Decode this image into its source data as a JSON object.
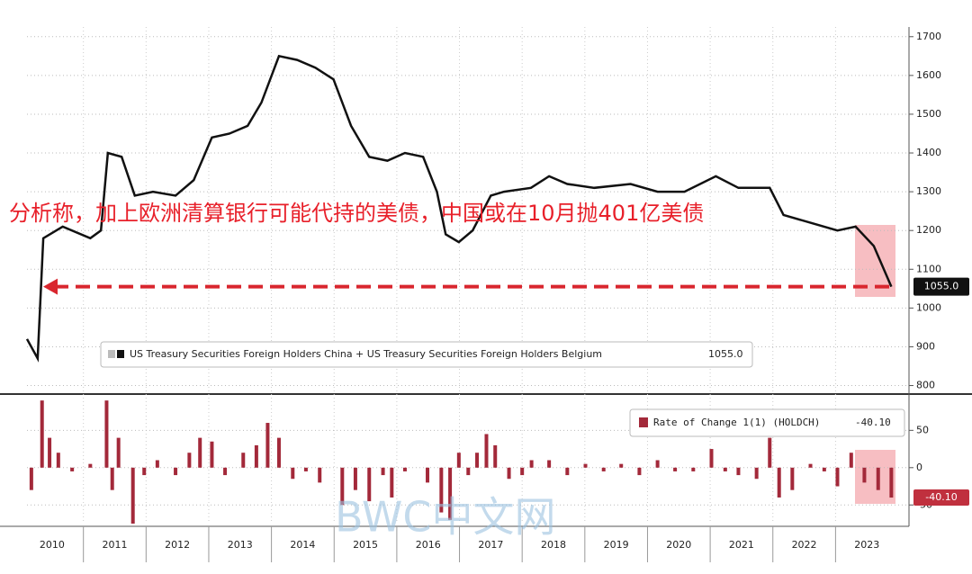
{
  "chart_data": [
    {
      "type": "line",
      "annotation": "分析称，加上欧洲清算银行可能代持的美债，中国或在10月抛401亿美债",
      "watermark": "BWC中文网",
      "xlim": [
        2010.1,
        2024.1
      ],
      "ylim": [
        785,
        1725
      ],
      "yticks": [
        800,
        900,
        1000,
        1100,
        1200,
        1300,
        1400,
        1500,
        1600,
        1700
      ],
      "grid": true,
      "series": [
        {
          "name": "US Treasury Securities Foreign Holders China + US Treasury Securities Foreign Holders Belgium",
          "color": "#111111",
          "last_value_label": "1055.0",
          "x": [
            2010.1,
            2010.27,
            2010.36,
            2010.67,
            2011.11,
            2011.28,
            2011.39,
            2011.61,
            2011.82,
            2012.11,
            2012.47,
            2012.76,
            2013.05,
            2013.33,
            2013.62,
            2013.84,
            2014.12,
            2014.41,
            2014.7,
            2014.99,
            2015.27,
            2015.56,
            2015.85,
            2016.13,
            2016.42,
            2016.64,
            2016.78,
            2016.99,
            2017.21,
            2017.5,
            2017.71,
            2018.14,
            2018.43,
            2018.72,
            2019.15,
            2019.73,
            2020.16,
            2020.59,
            2021.09,
            2021.45,
            2021.95,
            2022.17,
            2022.6,
            2023.03,
            2023.32,
            2023.61,
            2023.89
          ],
          "values": [
            920,
            870,
            1180,
            1210,
            1180,
            1200,
            1400,
            1390,
            1290,
            1300,
            1290,
            1330,
            1440,
            1450,
            1470,
            1530,
            1650,
            1640,
            1620,
            1590,
            1470,
            1390,
            1380,
            1400,
            1390,
            1300,
            1190,
            1170,
            1200,
            1290,
            1300,
            1310,
            1340,
            1320,
            1310,
            1320,
            1300,
            1300,
            1340,
            1310,
            1310,
            1240,
            1220,
            1200,
            1210,
            1160,
            1055
          ]
        }
      ]
    },
    {
      "type": "bar",
      "xlim": [
        2010.1,
        2024.1
      ],
      "xticks": [
        2010,
        2011,
        2012,
        2013,
        2014,
        2015,
        2016,
        2017,
        2018,
        2019,
        2020,
        2021,
        2022,
        2023
      ],
      "ylim": [
        -75,
        95
      ],
      "yticks": [
        -50,
        0,
        50
      ],
      "grid": true,
      "series": [
        {
          "name": "Rate of Change 1(1) (HOLDCH)",
          "color": "#a3293a",
          "last_value_label": "-40.10",
          "x": [
            2010.17,
            2010.34,
            2010.46,
            2010.6,
            2010.82,
            2011.11,
            2011.37,
            2011.46,
            2011.56,
            2011.79,
            2011.97,
            2012.18,
            2012.47,
            2012.69,
            2012.86,
            2013.05,
            2013.26,
            2013.55,
            2013.76,
            2013.94,
            2014.12,
            2014.34,
            2014.55,
            2014.77,
            2015.13,
            2015.34,
            2015.56,
            2015.78,
            2015.92,
            2016.13,
            2016.49,
            2016.71,
            2016.85,
            2016.99,
            2017.14,
            2017.28,
            2017.43,
            2017.57,
            2017.79,
            2018.0,
            2018.15,
            2018.43,
            2018.72,
            2019.01,
            2019.3,
            2019.58,
            2019.87,
            2020.16,
            2020.44,
            2020.73,
            2021.02,
            2021.24,
            2021.45,
            2021.74,
            2021.95,
            2022.1,
            2022.31,
            2022.6,
            2022.82,
            2023.03,
            2023.25,
            2023.46,
            2023.68,
            2023.89
          ],
          "values": [
            -30,
            90,
            40,
            20,
            -5,
            5,
            90,
            -30,
            40,
            -75,
            -10,
            10,
            -10,
            20,
            40,
            35,
            -10,
            20,
            30,
            60,
            40,
            -15,
            -5,
            -20,
            -50,
            -30,
            -45,
            -10,
            -40,
            -5,
            -20,
            -60,
            -70,
            20,
            -10,
            20,
            45,
            30,
            -15,
            -10,
            10,
            10,
            -10,
            5,
            -5,
            5,
            -10,
            10,
            -5,
            -5,
            25,
            -5,
            -10,
            -15,
            40,
            -40,
            -30,
            5,
            -5,
            -25,
            20,
            -20,
            -30,
            -40.1
          ]
        }
      ]
    }
  ]
}
